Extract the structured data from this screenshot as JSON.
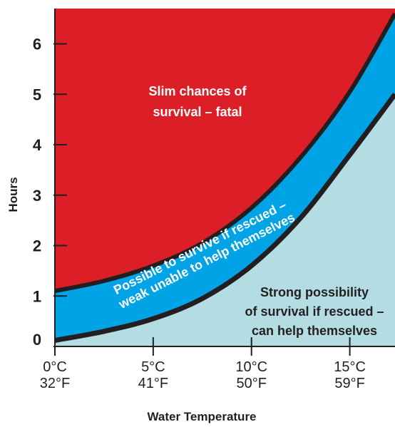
{
  "colors": {
    "fatal": "#dc1f26",
    "weak": "#00a3e6",
    "strong": "#b3dde2",
    "curve": "#231f20",
    "axis": "#231f20"
  },
  "chart_data": {
    "type": "area",
    "xlabel": "Water Temperature",
    "ylabel": "Hours",
    "xlim": [
      0,
      17.3
    ],
    "ylim": [
      0,
      6.7
    ],
    "grid": false,
    "y_ticks": [
      "0",
      "1",
      "2",
      "3",
      "4",
      "5",
      "6"
    ],
    "x_ticks": [
      {
        "value": 0,
        "celsius": "0°C",
        "fahrenheit": "32°F"
      },
      {
        "value": 5,
        "celsius": "5°C",
        "fahrenheit": "41°F"
      },
      {
        "value": 10,
        "celsius": "10°C",
        "fahrenheit": "50°F"
      },
      {
        "value": 15,
        "celsius": "15°C",
        "fahrenheit": "59°F"
      }
    ],
    "series": [
      {
        "x": [
          0,
          2.5,
          5,
          7.5,
          10,
          12.5,
          15,
          17.3
        ],
        "values": [
          0.12,
          0.3,
          0.55,
          0.95,
          1.6,
          2.55,
          3.8,
          5.0
        ]
      },
      {
        "x": [
          0,
          2.5,
          5,
          7.5,
          10,
          12.5,
          15,
          17.3
        ],
        "values": [
          1.1,
          1.3,
          1.6,
          2.05,
          2.75,
          3.75,
          5.05,
          6.6
        ]
      }
    ],
    "regions": [
      {
        "key": "fatal",
        "lines": [
          "Slim chances of",
          "survival – fatal"
        ]
      },
      {
        "key": "weak",
        "lines": [
          "Possible to survive if rescued –",
          "weak unable to help themselves"
        ]
      },
      {
        "key": "strong",
        "lines": [
          "Strong possibility",
          "of survival if rescued –",
          "can help themselves"
        ]
      }
    ]
  }
}
